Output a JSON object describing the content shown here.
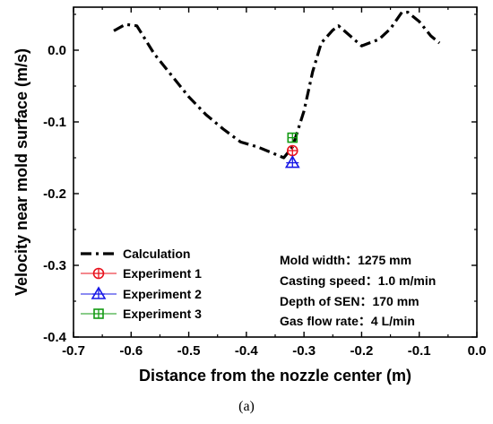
{
  "chart_data": {
    "type": "line",
    "xlabel": "Distance from the nozzle center (m)",
    "ylabel": "Velocity near mold surface (m/s)",
    "xlim": [
      -0.7,
      0.0
    ],
    "ylim": [
      -0.4,
      0.06
    ],
    "xticks": [
      -0.7,
      -0.6,
      -0.5,
      -0.4,
      -0.3,
      -0.2,
      -0.1,
      0.0
    ],
    "xtick_labels": [
      "-0.7",
      "-0.6",
      "-0.5",
      "-0.4",
      "-0.3",
      "-0.2",
      "-0.1",
      "0.0"
    ],
    "yticks": [
      -0.4,
      -0.3,
      -0.2,
      -0.1,
      0.0
    ],
    "ytick_labels": [
      "-0.4",
      "-0.3",
      "-0.2",
      "-0.1",
      "0.0"
    ],
    "grid": false,
    "legend_position": "bottom-left",
    "series": [
      {
        "name": "Calculation",
        "style": "dash-dot",
        "color": "#000000",
        "x": [
          -0.63,
          -0.61,
          -0.59,
          -0.56,
          -0.53,
          -0.5,
          -0.47,
          -0.44,
          -0.41,
          -0.38,
          -0.35,
          -0.335,
          -0.32,
          -0.3,
          -0.285,
          -0.27,
          -0.25,
          -0.24,
          -0.22,
          -0.2,
          -0.17,
          -0.15,
          -0.13,
          -0.12,
          -0.1,
          -0.08,
          -0.065
        ],
        "y": [
          0.027,
          0.036,
          0.034,
          -0.005,
          -0.035,
          -0.065,
          -0.09,
          -0.11,
          -0.128,
          -0.135,
          -0.145,
          -0.15,
          -0.135,
          -0.085,
          -0.03,
          0.01,
          0.028,
          0.034,
          0.02,
          0.006,
          0.015,
          0.03,
          0.053,
          0.053,
          0.04,
          0.02,
          0.01
        ]
      },
      {
        "name": "Experiment 1",
        "marker": "circle-plus",
        "color": "#e8101b",
        "x": [
          -0.32
        ],
        "y": [
          -0.14
        ]
      },
      {
        "name": "Experiment 2",
        "marker": "triangle",
        "color": "#1717e6",
        "x": [
          -0.32
        ],
        "y": [
          -0.157
        ]
      },
      {
        "name": "Experiment 3",
        "marker": "square-plus",
        "color": "#139a13",
        "x": [
          -0.32
        ],
        "y": [
          -0.122
        ]
      }
    ],
    "annotations": [
      "Mold width：1275 mm",
      "Casting speed：1.0 m/min",
      "Depth of SEN：170 mm",
      "Gas flow rate：4 L/min"
    ]
  },
  "caption": "(a)"
}
